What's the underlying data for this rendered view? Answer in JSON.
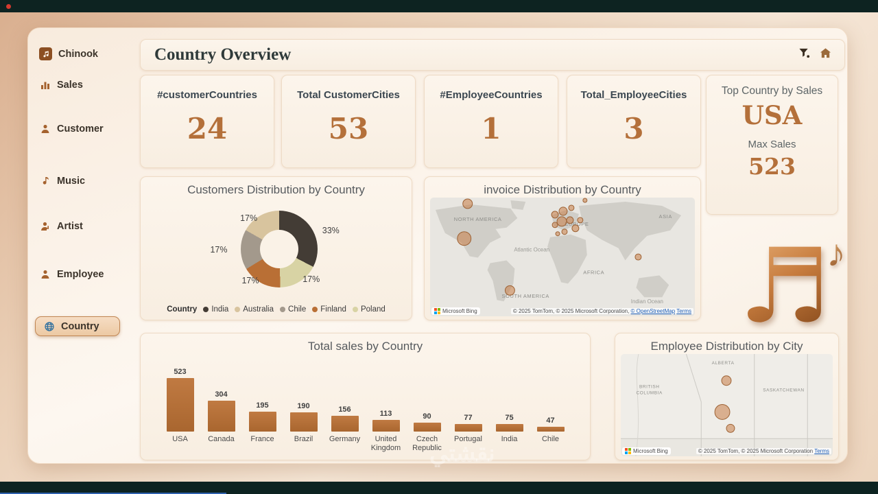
{
  "window": {
    "record_dot_color": "#d43a2f",
    "bottom_accent_color": "#2f62b0"
  },
  "header": {
    "title": "Country Overview",
    "icons": [
      "filter-icon",
      "home-icon"
    ]
  },
  "sidebar": {
    "items": [
      {
        "label": "Chinook",
        "icon": "music-note-icon",
        "selected": false
      },
      {
        "label": "Sales",
        "icon": "bar-chart-icon",
        "selected": false
      },
      {
        "label": "Customer",
        "icon": "person-icon",
        "selected": false
      },
      {
        "label": "Music",
        "icon": "music-note-icon",
        "selected": false
      },
      {
        "label": "Artist",
        "icon": "artist-icon",
        "selected": false
      },
      {
        "label": "Employee",
        "icon": "person-icon",
        "selected": false
      },
      {
        "label": "Country",
        "icon": "globe-icon",
        "selected": true
      }
    ]
  },
  "kpis": [
    {
      "label": "#customerCountries",
      "value": "24"
    },
    {
      "label": "Total CustomerCities",
      "value": "53"
    },
    {
      "label": "#EmployeeCountries",
      "value": "1"
    },
    {
      "label": "Total_EmployeeCities",
      "value": "3"
    }
  ],
  "top_country_card": {
    "title": "Top Country by Sales",
    "country": "USA",
    "max_label": "Max Sales",
    "max_value": "523"
  },
  "chart_data": [
    {
      "type": "pie",
      "title": "Customers Distribution by Country",
      "legend_title": "Country",
      "categories": [
        "India",
        "Australia",
        "Chile",
        "Finland",
        "Poland"
      ],
      "values": [
        33,
        17,
        17,
        17,
        17
      ],
      "colors": [
        "#433c35",
        "#d8c49e",
        "#a3998c",
        "#b96f35",
        "#d8d3a4"
      ],
      "draw_order": [
        0,
        4,
        3,
        2,
        1
      ],
      "donut": true,
      "legend_position": "bottom"
    },
    {
      "type": "bar",
      "title": "Total sales by Country",
      "categories": [
        "USA",
        "Canada",
        "France",
        "Brazil",
        "Germany",
        "United Kingdom",
        "Czech Republic",
        "Portugal",
        "India",
        "Chile"
      ],
      "values": [
        523,
        304,
        195,
        190,
        156,
        113,
        90,
        77,
        75,
        47
      ],
      "bar_color": "#b4703a",
      "xlabel": "",
      "ylabel": "",
      "ylim": [
        0,
        523
      ],
      "data_labels": true,
      "grid": false
    }
  ],
  "invoice_map": {
    "title": "invoice Distribution by Country",
    "region_labels": [
      "NORTH AMERICA",
      "EUROPE",
      "ASIA",
      "AFRICA",
      "SOUTH AMERICA"
    ],
    "ocean_labels": [
      "Atlantic Ocean",
      "Indian Ocean"
    ],
    "logo": "Microsoft Bing",
    "attribution": "© 2025 TomTom, © 2025 Microsoft Corporation, ",
    "osm_link": "© OpenStreetMap",
    "terms_link": "Terms"
  },
  "employee_map": {
    "title": "Employee Distribution by City",
    "region_labels": [
      "ALBERTA",
      "BRITISH",
      "COLUMBIA",
      "SASKATCHEWAN"
    ],
    "logo": "Microsoft Bing",
    "attribution": "© 2025 TomTom, © 2025 Microsoft Corporation",
    "terms_link": "Terms"
  },
  "decoration": {
    "clef_glyph": "♬",
    "note_glyph": "♪"
  },
  "watermark": "نقشتي"
}
